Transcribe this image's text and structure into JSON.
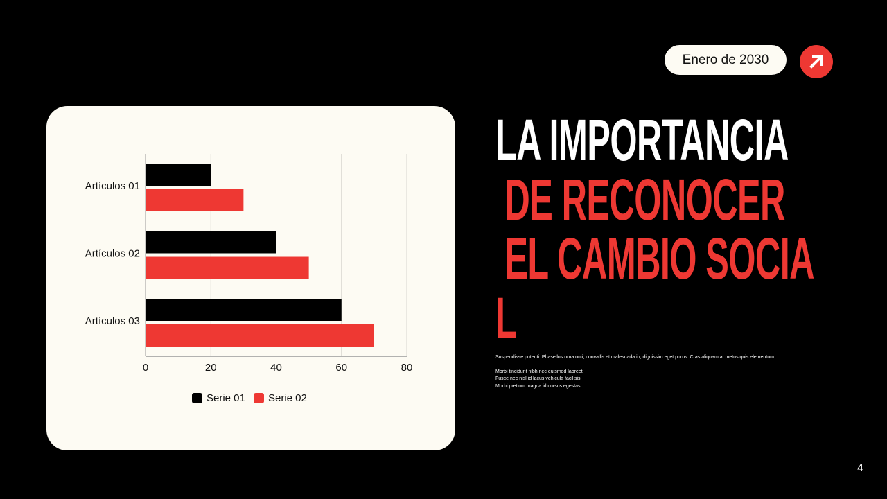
{
  "header": {
    "date_badge": "Enero de 2030",
    "arrow_icon": "arrow-up-right-icon"
  },
  "title": {
    "line1": "LA IMPORTANCIA",
    "line2": " DE RECONOCER",
    "line3": " EL CAMBIO SOCIA",
    "line4": "L"
  },
  "body": {
    "paragraph1": "Suspendisse potenti. Phasellus urna orci, convallis et malesuada in, dignissim eget purus. Cras aliquam at metus quis elementum.",
    "lines": [
      "Morbi tincidunt nibh nec euismod laoreet.",
      "Fusce nec nisl id lacus vehicula facilisis.",
      "Morbi pretium magna id cursus egestas."
    ]
  },
  "page_number": "4",
  "colors": {
    "accent": "#ee3833",
    "background": "#000000",
    "card": "#fdfbf3"
  },
  "chart_data": {
    "type": "bar",
    "orientation": "horizontal",
    "categories": [
      "Artículos 01",
      "Artículos 02",
      "Artículos 03"
    ],
    "series": [
      {
        "name": "Serie 01",
        "values": [
          20,
          40,
          60
        ],
        "color": "#000000"
      },
      {
        "name": "Serie 02",
        "values": [
          30,
          50,
          70
        ],
        "color": "#ee3833"
      }
    ],
    "xlim": [
      0,
      80
    ],
    "xticks": [
      "0",
      "20",
      "40",
      "60",
      "80"
    ],
    "grid": true,
    "legend": "bottom"
  }
}
